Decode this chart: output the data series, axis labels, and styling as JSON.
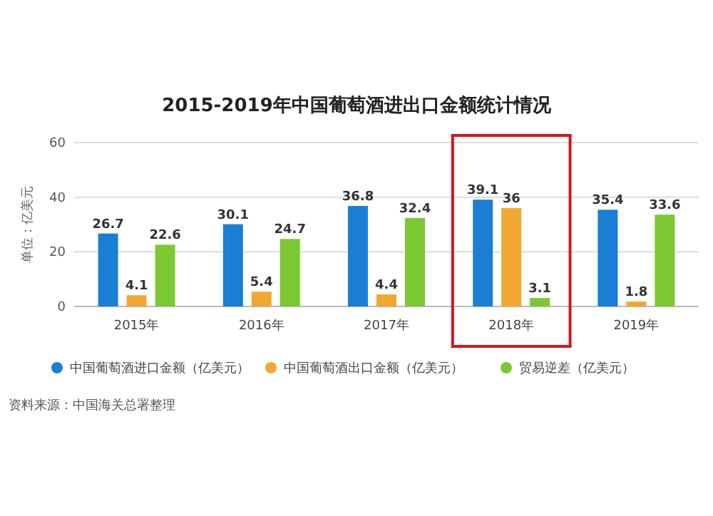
{
  "chart_data": {
    "type": "bar",
    "title": "2015-2019年中国葡萄酒进出口金额统计情况",
    "ylabel": "单位：亿美元",
    "categories": [
      "2015年",
      "2016年",
      "2017年",
      "2018年",
      "2019年"
    ],
    "series": [
      {
        "name": "中国葡萄酒进口金额（亿美元）",
        "color": "#1a7fd4",
        "values": [
          26.7,
          30.1,
          36.8,
          39.1,
          35.4
        ]
      },
      {
        "name": "中国葡萄酒出口金额（亿美元）",
        "color": "#f0a830",
        "values": [
          4.1,
          5.4,
          4.4,
          36,
          1.8
        ]
      },
      {
        "name": "贸易逆差（亿美元）",
        "color": "#7cc832",
        "values": [
          22.6,
          24.7,
          32.4,
          3.1,
          33.6
        ]
      }
    ],
    "ylim": [
      0,
      60
    ],
    "yticks": [
      0,
      20,
      40,
      60
    ],
    "grid": "y",
    "legend": "bottom",
    "data_labels": true,
    "annotations": [
      "资料来源：中国海关总署整理"
    ]
  }
}
